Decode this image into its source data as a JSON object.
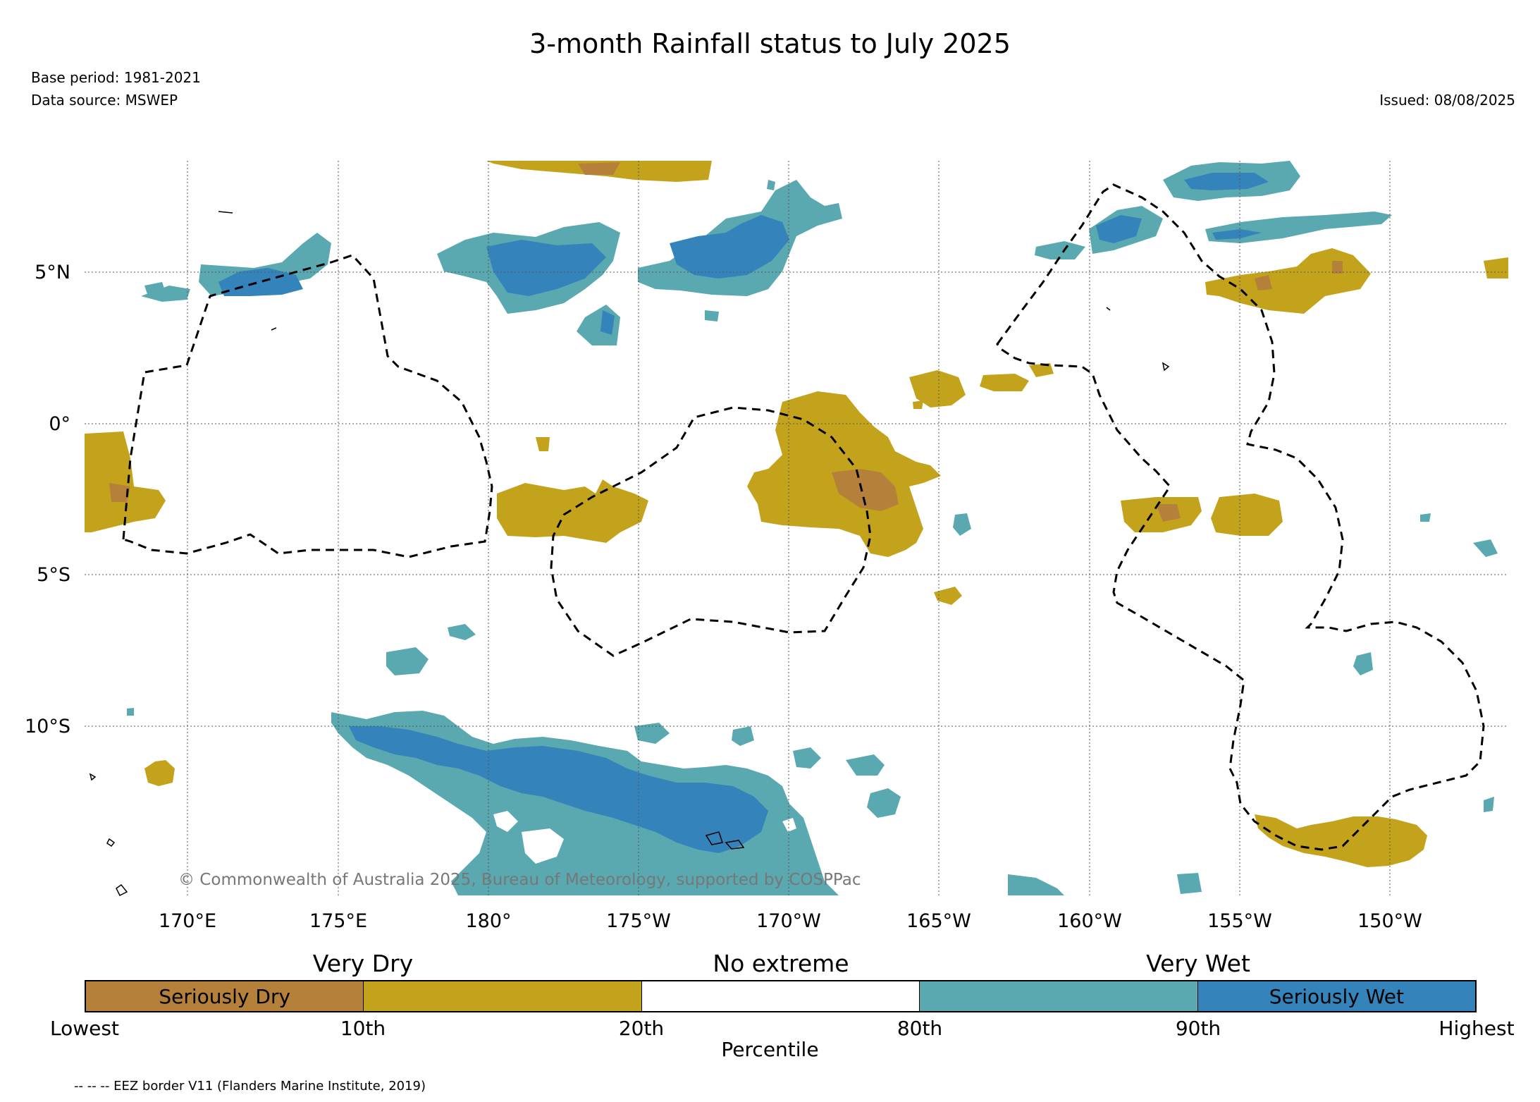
{
  "header": {
    "title": "3-month Rainfall status to July 2025",
    "base_period": "Base period: 1981-2021",
    "data_source": "Data source: MSWEP",
    "issued": "Issued: 08/08/2025"
  },
  "map": {
    "lon_labels": [
      "170°E",
      "175°E",
      "180°",
      "175°W",
      "170°W",
      "165°W",
      "160°W",
      "155°W",
      "150°W"
    ],
    "lat_labels": [
      "5°N",
      "0°",
      "5°S",
      "10°S"
    ],
    "copyright": "© Commonwealth of Australia 2025, Bureau of Meteorology, supported by COSPPac",
    "colors": {
      "seriously_dry": "#b5803a",
      "very_dry": "#c4a31c",
      "very_wet": "#5aa8b0",
      "seriously_wet": "#3583bb",
      "eez_border": "#000000"
    }
  },
  "legend": {
    "categories": [
      "Very Dry",
      "No extreme",
      "Very Wet"
    ],
    "segments": [
      "Seriously Dry",
      "",
      "",
      "",
      "Seriously Wet"
    ],
    "ticks": [
      "Lowest",
      "10th",
      "20th",
      "80th",
      "90th",
      "Highest"
    ],
    "axis_label": "Percentile",
    "eez_note": "-- -- -- EEZ border V11 (Flanders Marine Institute, 2019)"
  }
}
